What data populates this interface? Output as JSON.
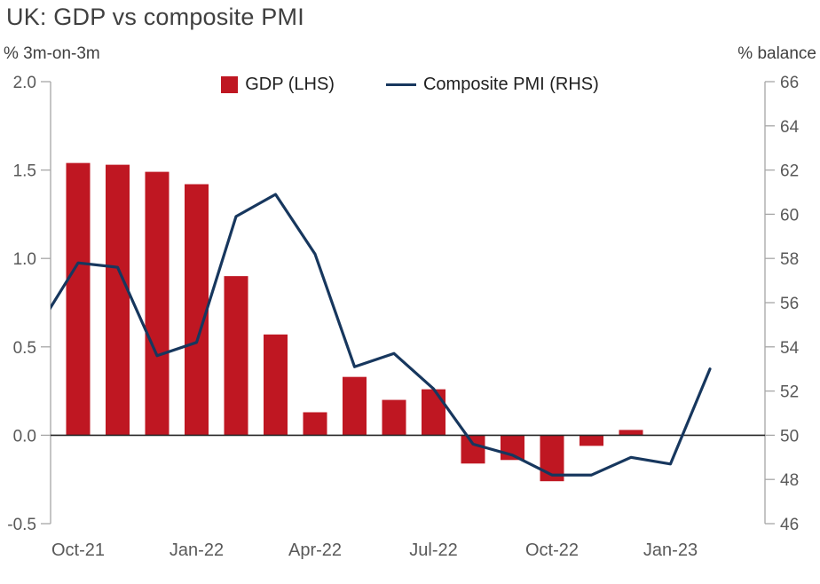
{
  "title": "UK: GDP vs composite PMI",
  "left_axis_unit": "% 3m-on-3m",
  "right_axis_unit": "% balance",
  "legend": {
    "gdp": "GDP (LHS)",
    "pmi": "Composite PMI (RHS)"
  },
  "colors": {
    "bar": "#BF1722",
    "line": "#17375E",
    "axis": "#A6A6A6",
    "tick_text": "#595959",
    "zero_line": "#262626"
  },
  "chart_data": {
    "type": "bar+line combo",
    "title": "UK: GDP vs composite PMI",
    "months": [
      "Sep-21",
      "Oct-21",
      "Nov-21",
      "Dec-21",
      "Jan-22",
      "Feb-22",
      "Mar-22",
      "Apr-22",
      "May-22",
      "Jun-22",
      "Jul-22",
      "Aug-22",
      "Sep-22",
      "Oct-22",
      "Nov-22",
      "Dec-22",
      "Jan-23",
      "Feb-23"
    ],
    "x_tick_labels": [
      "Oct-21",
      "Jan-22",
      "Apr-22",
      "Jul-22",
      "Oct-22",
      "Jan-23"
    ],
    "series": [
      {
        "name": "GDP (LHS)",
        "type": "bar",
        "axis": "left",
        "values": [
          null,
          1.54,
          1.53,
          1.49,
          1.42,
          0.9,
          0.57,
          0.13,
          0.33,
          0.2,
          0.26,
          -0.16,
          -0.14,
          -0.26,
          -0.06,
          0.03,
          null,
          null
        ]
      },
      {
        "name": "Composite PMI (RHS)",
        "type": "line",
        "axis": "right",
        "values": [
          54.9,
          57.8,
          57.6,
          53.6,
          54.2,
          59.9,
          60.9,
          58.2,
          53.1,
          53.7,
          52.1,
          49.6,
          49.1,
          48.2,
          48.2,
          49.0,
          48.7,
          53.0
        ]
      }
    ],
    "left_axis": {
      "label": "% 3m-on-3m",
      "min": -0.5,
      "max": 2.0,
      "step": 0.5
    },
    "right_axis": {
      "label": "% balance",
      "min": 46,
      "max": 66,
      "step": 2
    },
    "grid": false,
    "legend_position": "top-center",
    "zero_baseline": true
  }
}
